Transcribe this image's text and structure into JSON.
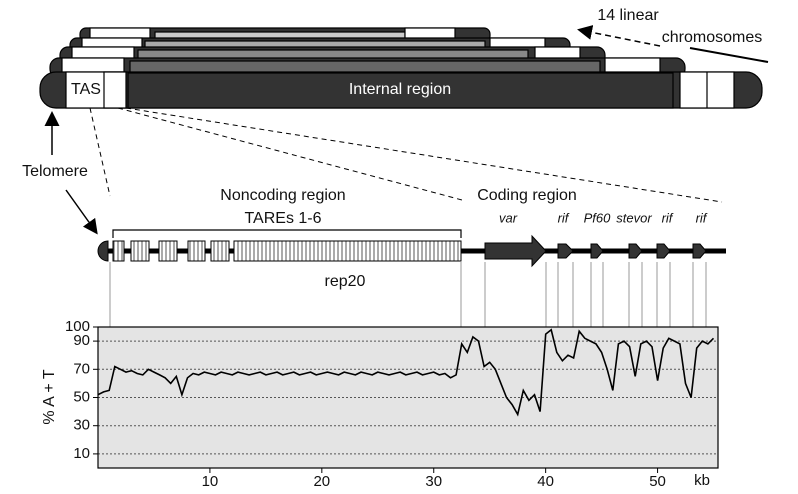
{
  "diagram": {
    "chromosome_label": [
      "14 linear",
      "chromosomes"
    ],
    "tas": "TAS",
    "internal": "Internal region",
    "telomere": "Telomere",
    "noncoding": "Noncoding region",
    "tares": "TAREs 1-6",
    "rep20": "rep20",
    "coding": "Coding region",
    "genes": [
      "var",
      "rif",
      "Pf60",
      "stevor",
      "rif",
      "rif"
    ]
  },
  "chart_data": {
    "type": "line",
    "ylabel": "% A + T",
    "xlabel": "kb",
    "color": "#000000",
    "background": "#e4e4e4",
    "grid": true,
    "xlim": [
      0,
      55.4
    ],
    "ylim": [
      0,
      100
    ],
    "xticks": [
      10,
      20,
      30,
      40,
      50
    ],
    "yticks": [
      10,
      30,
      50,
      70,
      90,
      100
    ],
    "x": [
      0,
      0.5,
      1,
      1.5,
      2,
      2.5,
      3,
      3.5,
      4,
      4.5,
      5,
      5.5,
      6,
      6.5,
      7,
      7.5,
      8,
      8.5,
      9,
      9.5,
      10,
      10.5,
      11,
      11.5,
      12,
      12.5,
      13,
      13.5,
      14,
      14.5,
      15,
      15.5,
      16,
      16.5,
      17,
      17.5,
      18,
      18.5,
      19,
      19.5,
      20,
      20.5,
      21,
      21.5,
      22,
      22.5,
      23,
      23.5,
      24,
      24.5,
      25,
      25.5,
      26,
      26.5,
      27,
      27.5,
      28,
      28.5,
      29,
      29.5,
      30,
      30.5,
      31,
      31.5,
      32,
      32.5,
      33,
      33.5,
      34,
      34.5,
      35,
      35.5,
      36,
      36.5,
      37,
      37.5,
      38,
      38.5,
      39,
      39.5,
      40,
      40.5,
      41,
      41.5,
      42,
      42.5,
      43,
      43.5,
      44,
      44.5,
      45,
      45.5,
      46,
      46.5,
      47,
      47.5,
      48,
      48.5,
      49,
      49.5,
      50,
      50.5,
      51,
      51.5,
      52,
      52.5,
      53,
      53.5,
      54,
      54.5,
      55
    ],
    "values": [
      52,
      54,
      55,
      72,
      70,
      68,
      69,
      67,
      66,
      70,
      68,
      66,
      64,
      60,
      65,
      52,
      64,
      67,
      66,
      68,
      67,
      66,
      68,
      67,
      66,
      68,
      67,
      66,
      67,
      68,
      66,
      67,
      68,
      66,
      67,
      68,
      66,
      67,
      68,
      66,
      67,
      68,
      67,
      66,
      68,
      67,
      66,
      68,
      67,
      66,
      68,
      67,
      66,
      67,
      68,
      66,
      67,
      68,
      66,
      67,
      68,
      66,
      67,
      64,
      66,
      88,
      82,
      93,
      90,
      72,
      75,
      70,
      60,
      50,
      45,
      38,
      55,
      48,
      52,
      40,
      95,
      98,
      82,
      76,
      80,
      78,
      97,
      92,
      90,
      88,
      82,
      70,
      55,
      88,
      90,
      86,
      65,
      88,
      90,
      86,
      62,
      85,
      92,
      90,
      88,
      60,
      50,
      85,
      90,
      88,
      92
    ]
  }
}
